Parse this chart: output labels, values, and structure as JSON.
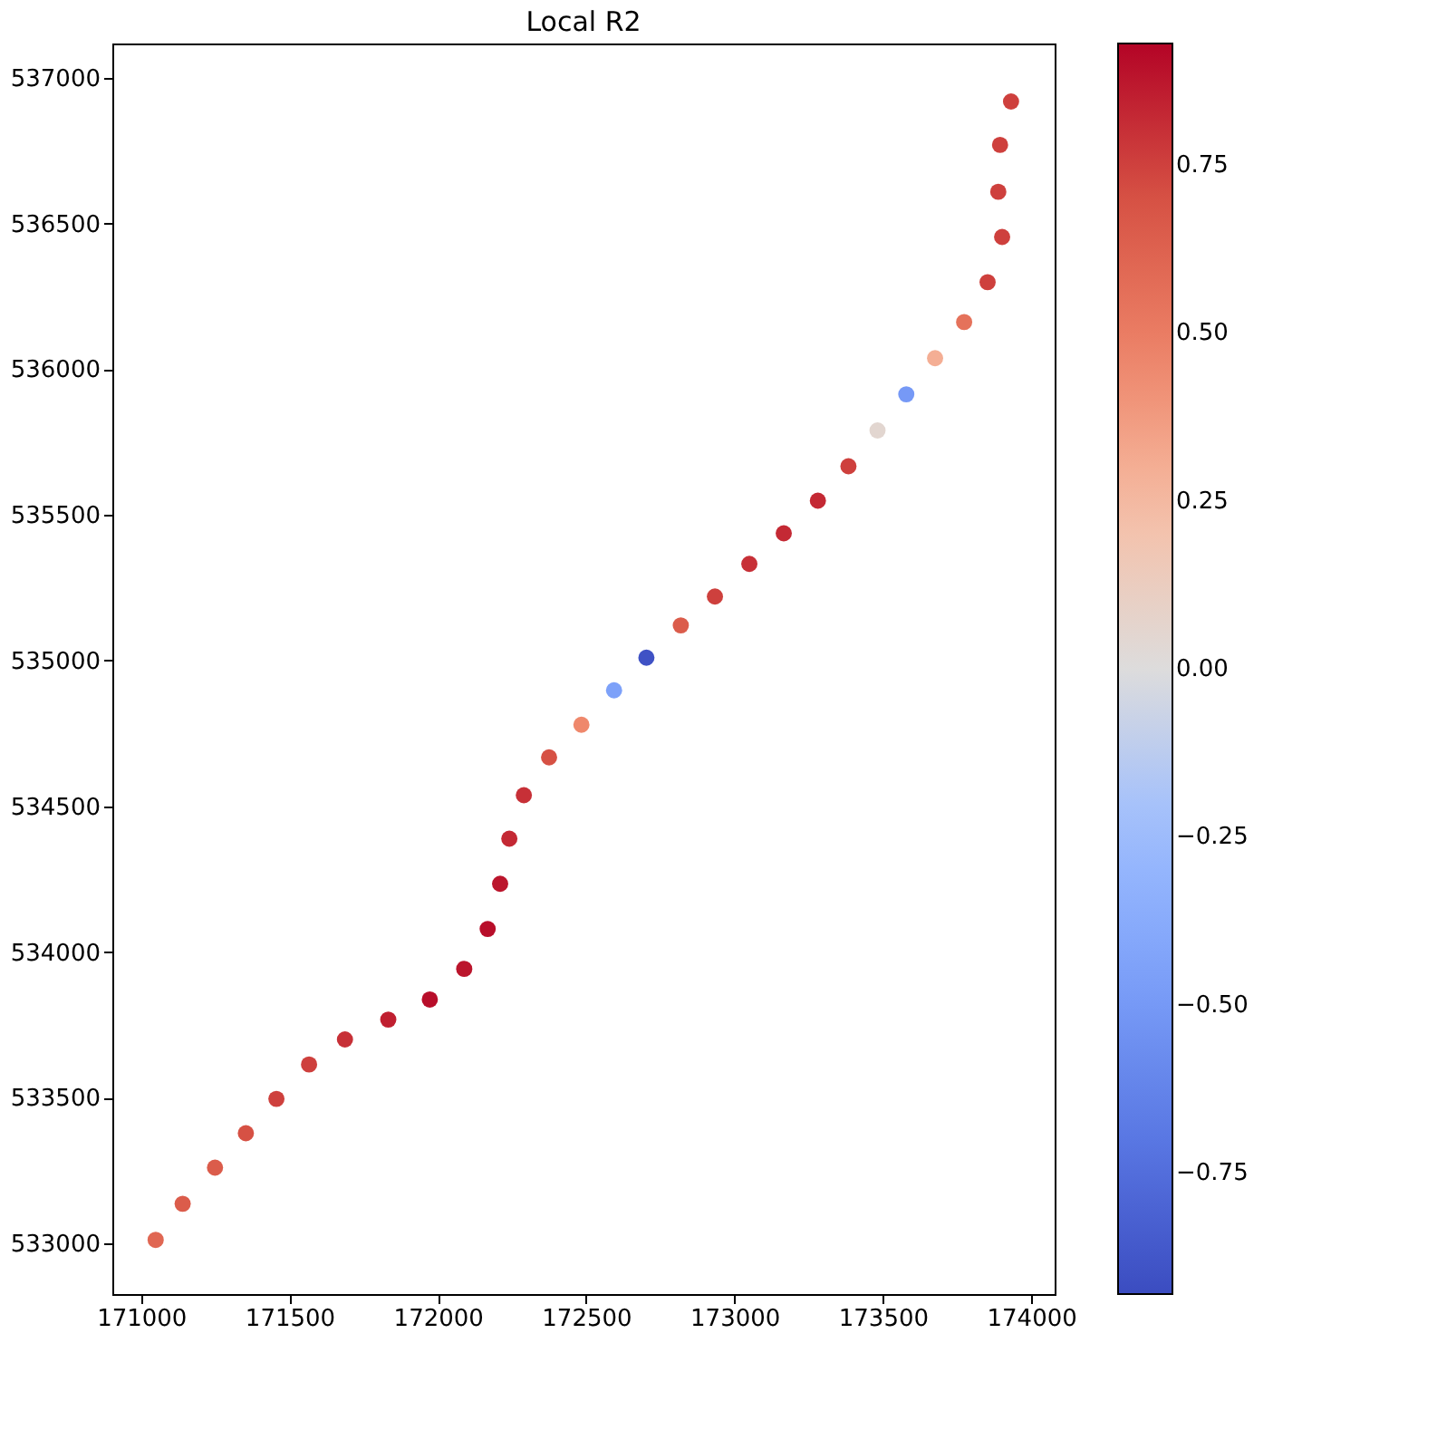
{
  "chart_data": {
    "type": "scatter",
    "title": "Local R2",
    "marker": "circle",
    "grid": false,
    "x": [
      171049,
      171140,
      171249,
      171353,
      171456,
      171566,
      171687,
      171833,
      171973,
      172089,
      172168,
      172210,
      172241,
      172290,
      172375,
      172484,
      172594,
      172703,
      172819,
      172934,
      173050,
      173166,
      173281,
      173384,
      173482,
      173579,
      173676,
      173774,
      173853,
      173902,
      173889,
      173895,
      173932
    ],
    "values": [
      533012,
      533136,
      533260,
      533378,
      533496,
      533614,
      533700,
      533768,
      533837,
      533942,
      534079,
      534234,
      534389,
      534538,
      534668,
      534780,
      534898,
      535010,
      535121,
      535220,
      535332,
      535437,
      535549,
      535667,
      535790,
      535914,
      536038,
      536162,
      536299,
      536454,
      536609,
      536770,
      536919
    ],
    "cvalues": [
      0.6,
      0.65,
      0.65,
      0.7,
      0.75,
      0.75,
      0.8,
      0.85,
      0.9,
      0.88,
      0.9,
      0.88,
      0.82,
      0.8,
      0.7,
      0.45,
      -0.45,
      -0.9,
      0.65,
      0.75,
      0.8,
      0.82,
      0.82,
      0.75,
      0.05,
      -0.5,
      0.3,
      0.55,
      0.75,
      0.75,
      0.75,
      0.75,
      0.75
    ],
    "xlim": [
      170903,
      174079
    ],
    "xticks": [
      171000,
      171500,
      172000,
      172500,
      173000,
      173500,
      174000
    ],
    "ylim": [
      532826,
      537118
    ],
    "yticks": [
      533000,
      533500,
      534000,
      534500,
      535000,
      535500,
      536000,
      536500,
      537000
    ],
    "clim": [
      -0.93,
      0.93
    ],
    "cticks": [
      -0.75,
      {
        "value": -0.5,
        "label": "−0.50"
      },
      -0.25,
      {
        "value": 0.0,
        "label": "0.00"
      },
      0.25,
      {
        "value": 0.5,
        "label": "0.50"
      },
      0.75
    ]
  }
}
